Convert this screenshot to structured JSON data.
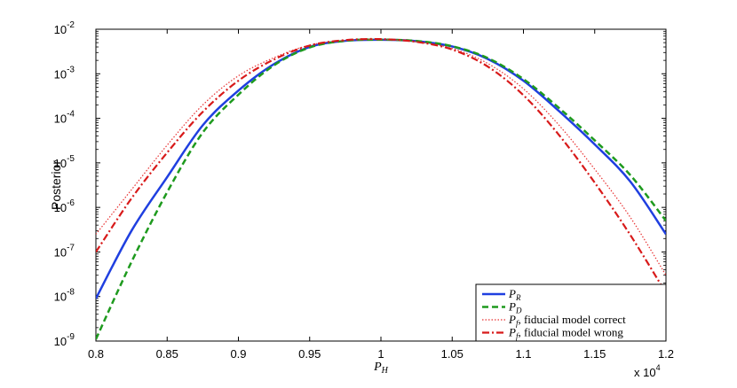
{
  "chart_data": {
    "type": "line",
    "title": "",
    "ylabel": "Posterior",
    "xlabel": "P_H",
    "xlabel_main": "P",
    "xlabel_sub": "H",
    "x_multiplier_label": "x 10",
    "x_multiplier_exp": "4",
    "xlim": [
      8000,
      12000
    ],
    "ylim": [
      1e-09,
      0.01
    ],
    "yscale": "log",
    "grid": false,
    "legend_position": "bottom-right",
    "x_ticks": [
      0.8,
      0.85,
      0.9,
      0.95,
      1,
      1.05,
      1.1,
      1.15,
      1.2
    ],
    "x_tick_labels": [
      "0.8",
      "0.85",
      "0.9",
      "0.95",
      "1",
      "1.05",
      "1.1",
      "1.15",
      "1.2"
    ],
    "y_ticks": [
      {
        "value": 1e-09,
        "base": "10",
        "exp": "-9"
      },
      {
        "value": 1e-08,
        "base": "10",
        "exp": "-8"
      },
      {
        "value": 1e-07,
        "base": "10",
        "exp": "-7"
      },
      {
        "value": 1e-06,
        "base": "10",
        "exp": "-6"
      },
      {
        "value": 1e-05,
        "base": "10",
        "exp": "-5"
      },
      {
        "value": 0.0001,
        "base": "10",
        "exp": "-4"
      },
      {
        "value": 0.001,
        "base": "10",
        "exp": "-3"
      },
      {
        "value": 0.01,
        "base": "10",
        "exp": "-2"
      }
    ],
    "x": [
      8000,
      8250,
      8500,
      8750,
      9000,
      9250,
      9500,
      9750,
      10000,
      10250,
      10500,
      10750,
      11000,
      11250,
      11500,
      11750,
      12000
    ],
    "series": [
      {
        "key": "PR",
        "label_main": "P",
        "label_sub": "R",
        "label_suffix": "",
        "color": "#1f3fe0",
        "dash": "none",
        "width": 2.5,
        "values": [
          9e-09,
          3e-07,
          4.8e-06,
          7e-05,
          0.00042,
          0.00165,
          0.004,
          0.0055,
          0.0058,
          0.0054,
          0.0041,
          0.00215,
          0.0007,
          0.000145,
          2.6e-05,
          3.8e-06,
          2.5e-07
        ]
      },
      {
        "key": "PD",
        "label_main": "P",
        "label_sub": "D",
        "label_suffix": "",
        "color": "#1e9a1e",
        "dash": "7,4",
        "width": 2.5,
        "values": [
          1.1e-09,
          6e-08,
          2.2e-06,
          4.8e-05,
          0.00034,
          0.00155,
          0.0039,
          0.0055,
          0.00585,
          0.00545,
          0.00415,
          0.00225,
          0.00076,
          0.00017,
          3.2e-05,
          5.3e-06,
          5e-07
        ]
      },
      {
        "key": "Pf_correct",
        "label_main": "P",
        "label_sub": "f",
        "label_suffix": ", fiducial model correct",
        "color": "#e83232",
        "dash": "1.5,2",
        "width": 1.2,
        "values": [
          2.5e-07,
          2.5e-06,
          2.5e-05,
          0.0002,
          0.0009,
          0.0023,
          0.0044,
          0.0056,
          0.0059,
          0.0052,
          0.0037,
          0.0017,
          0.00046,
          7e-05,
          7.2e-06,
          6e-07,
          3e-08
        ]
      },
      {
        "key": "Pf_wrong",
        "label_main": "P",
        "label_sub": "f",
        "label_suffix": ", fiducial model wrong",
        "color": "#d81a1a",
        "dash": "8,3,2,3",
        "width": 2.2,
        "values": [
          1e-07,
          1.6e-06,
          1.7e-05,
          0.00014,
          0.0007,
          0.0021,
          0.0043,
          0.0057,
          0.006,
          0.0052,
          0.0035,
          0.00145,
          0.00033,
          4.2e-05,
          3.6e-06,
          2.4e-07,
          1.2e-08
        ]
      }
    ]
  }
}
